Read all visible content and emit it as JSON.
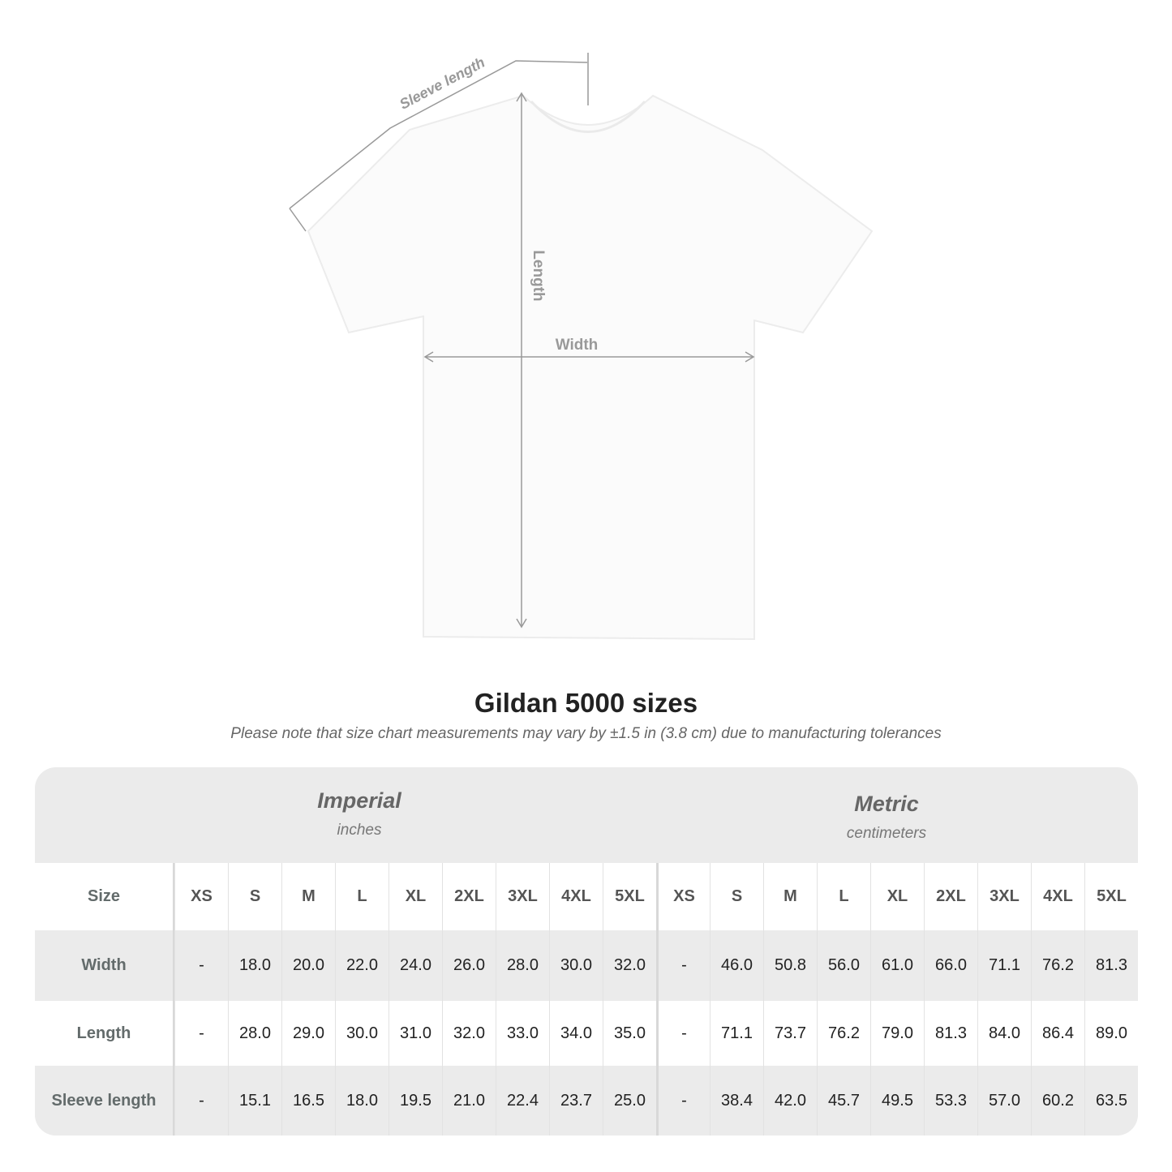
{
  "diagram": {
    "labels": {
      "sleeve_length": "Sleeve length",
      "length": "Length",
      "width": "Width"
    },
    "line_color": "#999999"
  },
  "title": "Gildan 5000 sizes",
  "subtitle": "Please note that size chart measurements may vary by ±1.5 in (3.8 cm) due to manufacturing tolerances",
  "table": {
    "imperial": {
      "label": "Imperial",
      "unit": "inches"
    },
    "metric": {
      "label": "Metric",
      "unit": "centimeters"
    },
    "size_label": "Size",
    "sizes": [
      "XS",
      "S",
      "M",
      "L",
      "XL",
      "2XL",
      "3XL",
      "4XL",
      "5XL"
    ],
    "rows": [
      {
        "label": "Width",
        "imperial": [
          "-",
          "18.0",
          "20.0",
          "22.0",
          "24.0",
          "26.0",
          "28.0",
          "30.0",
          "32.0"
        ],
        "metric": [
          "-",
          "46.0",
          "50.8",
          "56.0",
          "61.0",
          "66.0",
          "71.1",
          "76.2",
          "81.3"
        ]
      },
      {
        "label": "Length",
        "imperial": [
          "-",
          "28.0",
          "29.0",
          "30.0",
          "31.0",
          "32.0",
          "33.0",
          "34.0",
          "35.0"
        ],
        "metric": [
          "-",
          "71.1",
          "73.7",
          "76.2",
          "79.0",
          "81.3",
          "84.0",
          "86.4",
          "89.0"
        ]
      },
      {
        "label": "Sleeve length",
        "imperial": [
          "-",
          "15.1",
          "16.5",
          "18.0",
          "19.5",
          "21.0",
          "22.4",
          "23.7",
          "25.0"
        ],
        "metric": [
          "-",
          "38.4",
          "42.0",
          "45.7",
          "49.5",
          "53.3",
          "57.0",
          "60.2",
          "63.5"
        ]
      }
    ]
  }
}
